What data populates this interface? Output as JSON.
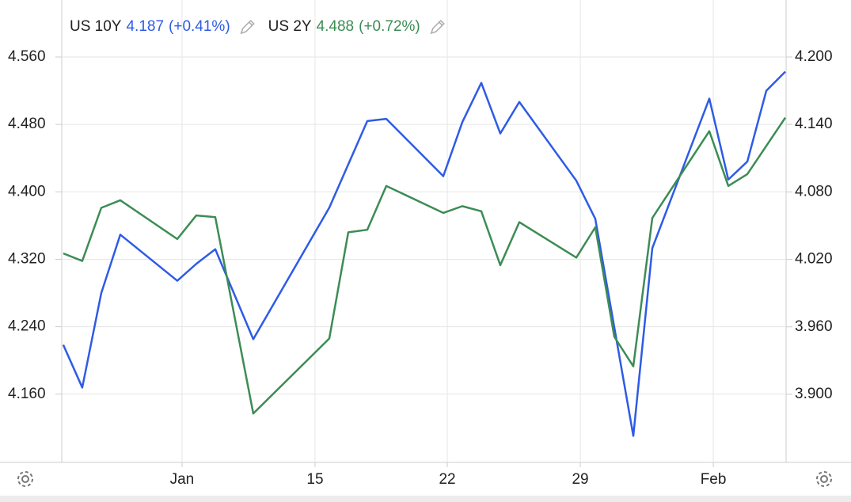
{
  "chart_data": {
    "type": "line",
    "series": [
      {
        "name": "US 10Y",
        "last": 4.187,
        "change_label": "(+0.41%)",
        "color": "#2e5be6",
        "axis": "y2",
        "x": [
          0,
          1,
          2,
          3,
          6,
          7,
          8,
          10,
          14,
          16,
          17,
          20,
          21,
          22,
          23,
          24,
          27,
          28,
          30,
          31,
          34,
          35,
          36,
          37,
          38
        ],
        "values": [
          3.944,
          3.906,
          3.99,
          4.042,
          4.001,
          4.016,
          4.029,
          3.949,
          4.066,
          4.143,
          4.145,
          4.094,
          4.142,
          4.177,
          4.132,
          4.16,
          4.09,
          4.056,
          3.863,
          4.03,
          4.163,
          4.091,
          4.107,
          4.17,
          4.187
        ]
      },
      {
        "name": "US 2Y",
        "last": 4.488,
        "change_label": "(+0.72%)",
        "color": "#3d8c55",
        "x": [
          0,
          1,
          2,
          3,
          6,
          7,
          8,
          10,
          14,
          15,
          16,
          17,
          20,
          21,
          22,
          23,
          24,
          27,
          28,
          29,
          30,
          31,
          34,
          35,
          36,
          38
        ],
        "values": [
          4.327,
          4.318,
          4.381,
          4.39,
          4.344,
          4.372,
          4.37,
          4.137,
          4.226,
          4.352,
          4.355,
          4.407,
          4.375,
          4.383,
          4.377,
          4.313,
          4.364,
          4.322,
          4.358,
          4.228,
          4.193,
          4.369,
          4.472,
          4.407,
          4.421,
          4.488
        ]
      }
    ],
    "xlim": [
      -0.08,
      38.04
    ],
    "xticks": [
      {
        "value": 6.25,
        "label": "Jan"
      },
      {
        "value": 13.25,
        "label": "15"
      },
      {
        "value": 20.21,
        "label": "22"
      },
      {
        "value": 27.21,
        "label": "29"
      },
      {
        "value": 34.21,
        "label": "Feb"
      }
    ],
    "ylim": [
      4.079,
      4.6276
    ],
    "yticks": [
      {
        "value": 4.16,
        "label": "4.160"
      },
      {
        "value": 4.24,
        "label": "4.240"
      },
      {
        "value": 4.32,
        "label": "4.320"
      },
      {
        "value": 4.4,
        "label": "4.400"
      },
      {
        "value": 4.48,
        "label": "4.480"
      },
      {
        "value": 4.56,
        "label": "4.560"
      }
    ],
    "y2lim": [
      3.8394,
      4.2507
    ],
    "y2ticks": [
      {
        "value": 3.9,
        "label": "3.900"
      },
      {
        "value": 3.96,
        "label": "3.960"
      },
      {
        "value": 4.02,
        "label": "4.020"
      },
      {
        "value": 4.08,
        "label": "4.080"
      },
      {
        "value": 4.14,
        "label": "4.140"
      },
      {
        "value": 4.2,
        "label": "4.200"
      }
    ],
    "grid": true
  }
}
